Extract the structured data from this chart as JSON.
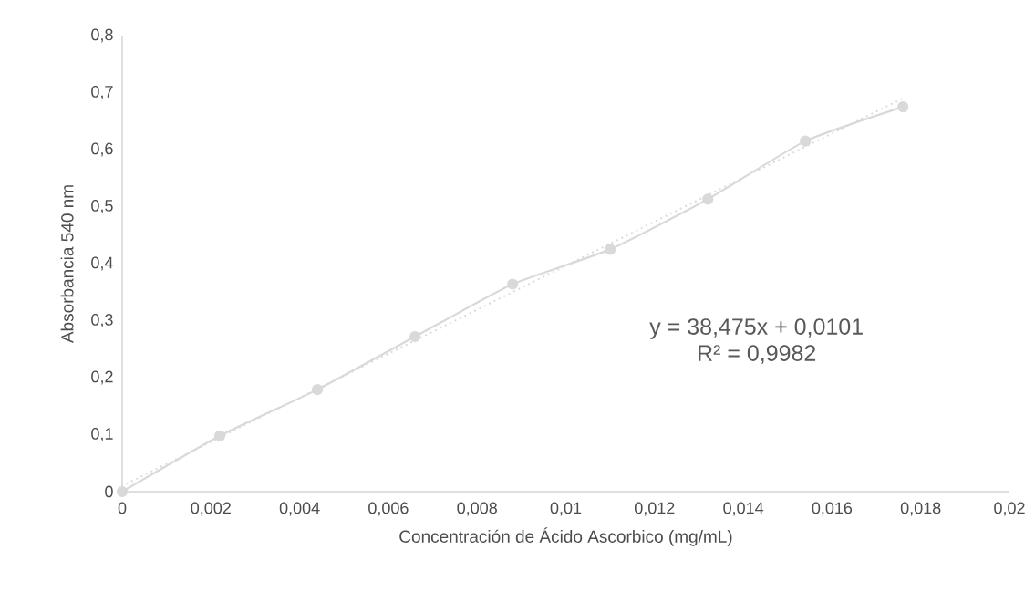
{
  "chart_data": {
    "type": "line",
    "xlabel": "Concentración de Ácido Ascorbico (mg/mL)",
    "ylabel": "Absorbancia  540 nm",
    "annotations": [
      "y = 38,475x + 0,0101",
      "R² = 0,9982"
    ],
    "xlim": [
      0,
      0.02
    ],
    "ylim": [
      0,
      0.8
    ],
    "xticks": [
      0,
      {
        "value": 0.002,
        "label": "0,002"
      },
      {
        "value": 0.004,
        "label": "0,004"
      },
      {
        "value": 0.006,
        "label": "0,006"
      },
      {
        "value": 0.008,
        "label": "0,008"
      },
      {
        "value": 0.01,
        "label": "0,01"
      },
      {
        "value": 0.012,
        "label": "0,012"
      },
      {
        "value": 0.014,
        "label": "0,014"
      },
      {
        "value": 0.016,
        "label": "0,016"
      },
      {
        "value": 0.018,
        "label": "0,018"
      },
      {
        "value": 0.02,
        "label": "0,02"
      }
    ],
    "yticks": [
      0,
      {
        "value": 0.1,
        "label": "0,1"
      },
      {
        "value": 0.2,
        "label": "0,2"
      },
      {
        "value": 0.3,
        "label": "0,3"
      },
      {
        "value": 0.4,
        "label": "0,4"
      },
      {
        "value": 0.5,
        "label": "0,5"
      },
      {
        "value": 0.6,
        "label": "0,6"
      },
      {
        "value": 0.7,
        "label": "0,7"
      },
      {
        "value": 0.8,
        "label": "0,8"
      }
    ],
    "series": [
      {
        "color": "#d9d9d9",
        "marker": "circle",
        "line_style": "solid",
        "x": [
          0,
          0.0022,
          0.0044,
          0.0066,
          0.0088,
          0.011,
          0.0132,
          0.0154,
          0.0176
        ],
        "values": [
          0,
          0.098,
          0.179,
          0.272,
          0.364,
          0.425,
          0.513,
          0.615,
          0.675
        ]
      },
      {
        "color": "#d9d9d9",
        "marker": "none",
        "line_style": "dotted",
        "x": [
          0,
          0.0176
        ],
        "values": [
          0.01,
          0.69
        ]
      }
    ]
  }
}
